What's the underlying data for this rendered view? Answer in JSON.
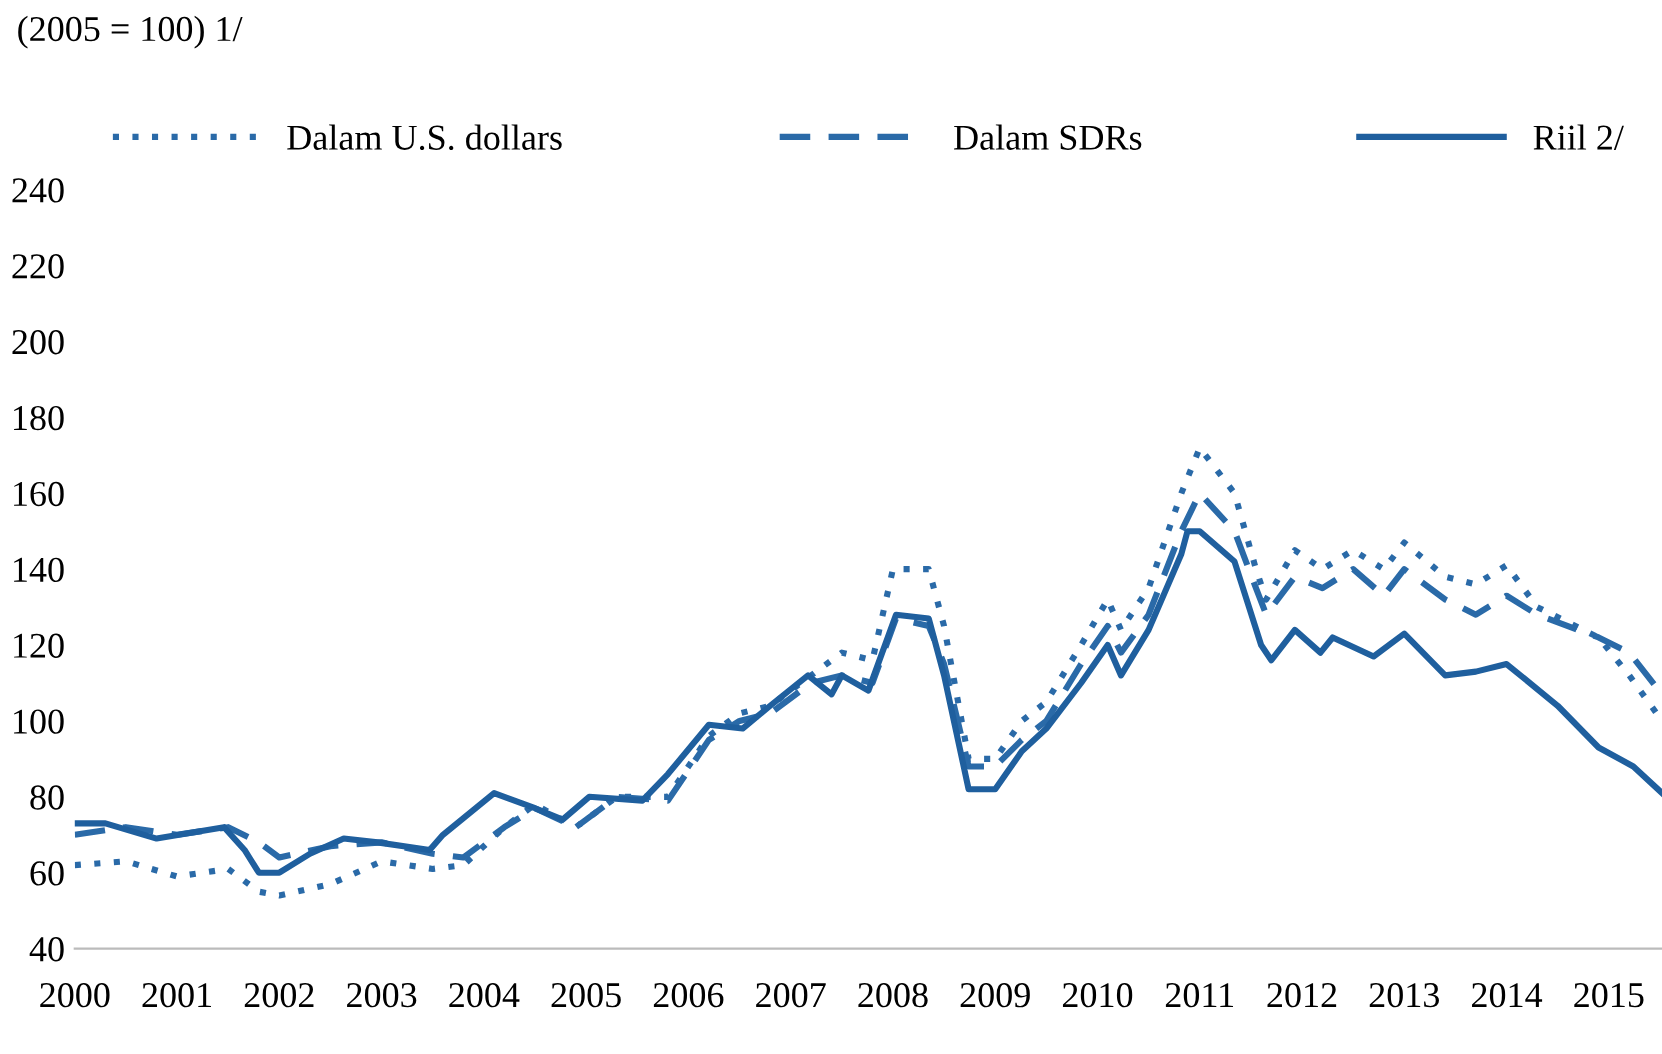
{
  "chart_data": {
    "type": "line",
    "title": "(2005 = 100) 1/",
    "xlim": [
      2000,
      2015.52
    ],
    "xticks": [
      2000,
      2001,
      2002,
      2003,
      2004,
      2005,
      2006,
      2007,
      2008,
      2009,
      2010,
      2011,
      2012,
      2013,
      2014,
      2015
    ],
    "ylim": [
      40,
      240
    ],
    "yticks": [
      40,
      60,
      80,
      100,
      120,
      140,
      160,
      180,
      200,
      220,
      240
    ],
    "grid": false,
    "legend": "top",
    "marker": "none",
    "series": [
      {
        "name": "Dalam U.S. dollars",
        "color": "#2a6aa8",
        "line_style": "dotted",
        "x": [
          2000,
          2000.5,
          2001,
          2001.5,
          2001.8,
          2002,
          2002.5,
          2003,
          2003.5,
          2003.8,
          2004.2,
          2004.5,
          2004.9,
          2005.3,
          2005.8,
          2006.2,
          2006.5,
          2006.8,
          2007.2,
          2007.5,
          2007.8,
          2008.0,
          2008.35,
          2008.5,
          2008.74,
          2009.0,
          2009.26,
          2009.5,
          2009.84,
          2010.1,
          2010.23,
          2010.5,
          2010.82,
          2011.0,
          2011.34,
          2011.55,
          2011.65,
          2011.93,
          2012.2,
          2012.5,
          2012.8,
          2013.0,
          2013.4,
          2013.7,
          2014.0,
          2014.3,
          2014.6,
          2014.9,
          2015.2,
          2015.52
        ],
        "values": [
          62,
          63,
          59,
          61,
          55,
          54,
          57,
          63,
          61,
          62,
          72,
          78,
          72,
          80,
          80,
          96,
          102,
          104,
          112,
          118,
          116,
          140,
          140,
          125,
          90,
          90,
          100,
          105,
          120,
          132,
          124,
          135,
          160,
          172,
          160,
          140,
          132,
          145,
          140,
          145,
          140,
          147,
          138,
          136,
          141,
          130,
          126,
          122,
          112,
          100
        ]
      },
      {
        "name": "Dalam SDRs",
        "color": "#2a6aa8",
        "line_style": "dashed",
        "x": [
          2000,
          2000.5,
          2001,
          2001.5,
          2001.8,
          2002,
          2002.5,
          2003,
          2003.5,
          2003.8,
          2004.2,
          2004.5,
          2004.9,
          2005.3,
          2005.8,
          2006.2,
          2006.5,
          2006.8,
          2007.2,
          2007.5,
          2007.8,
          2008.03,
          2008.35,
          2008.5,
          2008.74,
          2009.0,
          2009.26,
          2009.5,
          2009.84,
          2010.1,
          2010.23,
          2010.5,
          2010.82,
          2011.0,
          2011.34,
          2011.55,
          2011.65,
          2011.93,
          2012.2,
          2012.5,
          2012.8,
          2013.0,
          2013.4,
          2013.7,
          2014.0,
          2014.3,
          2014.6,
          2014.9,
          2015.2,
          2015.52
        ],
        "values": [
          70,
          72,
          70,
          72,
          68,
          64,
          67,
          68,
          65,
          64,
          72,
          77,
          72,
          80,
          79,
          95,
          100,
          102,
          110,
          112,
          110,
          127,
          125,
          115,
          88,
          88,
          95,
          100,
          115,
          125,
          118,
          128,
          150,
          160,
          150,
          135,
          128,
          138,
          135,
          140,
          133,
          140,
          132,
          128,
          133,
          128,
          125,
          122,
          118,
          107
        ]
      },
      {
        "name": "Riil 2/",
        "color": "#1f5f9e",
        "line_style": "solid",
        "x": [
          2000,
          2000.3,
          2000.8,
          2001.46,
          2001.66,
          2001.8,
          2002.0,
          2002.3,
          2002.63,
          2002.96,
          2003.47,
          2003.6,
          2004.1,
          2004.5,
          2004.77,
          2005.03,
          2005.55,
          2005.8,
          2006.2,
          2006.53,
          2006.8,
          2007.17,
          2007.4,
          2007.5,
          2007.76,
          2008.03,
          2008.35,
          2008.5,
          2008.74,
          2009.0,
          2009.26,
          2009.5,
          2009.84,
          2010.1,
          2010.23,
          2010.5,
          2010.82,
          2010.88,
          2011.0,
          2011.34,
          2011.6,
          2011.7,
          2011.93,
          2012.18,
          2012.3,
          2012.7,
          2013.0,
          2013.4,
          2013.7,
          2014.0,
          2014.5,
          2014.9,
          2015.24,
          2015.52
        ],
        "values": [
          73,
          73,
          69,
          72,
          66,
          60,
          60,
          65,
          69,
          68,
          66,
          70,
          81,
          77,
          74,
          80,
          79,
          86,
          99,
          98,
          104,
          112,
          107,
          112,
          108,
          128,
          127,
          112,
          82,
          82,
          92,
          98,
          110,
          120,
          112,
          124,
          144,
          150,
          150,
          142,
          120,
          116,
          124,
          118,
          122,
          117,
          123,
          112,
          113,
          115,
          104,
          93,
          88,
          81
        ]
      }
    ]
  }
}
